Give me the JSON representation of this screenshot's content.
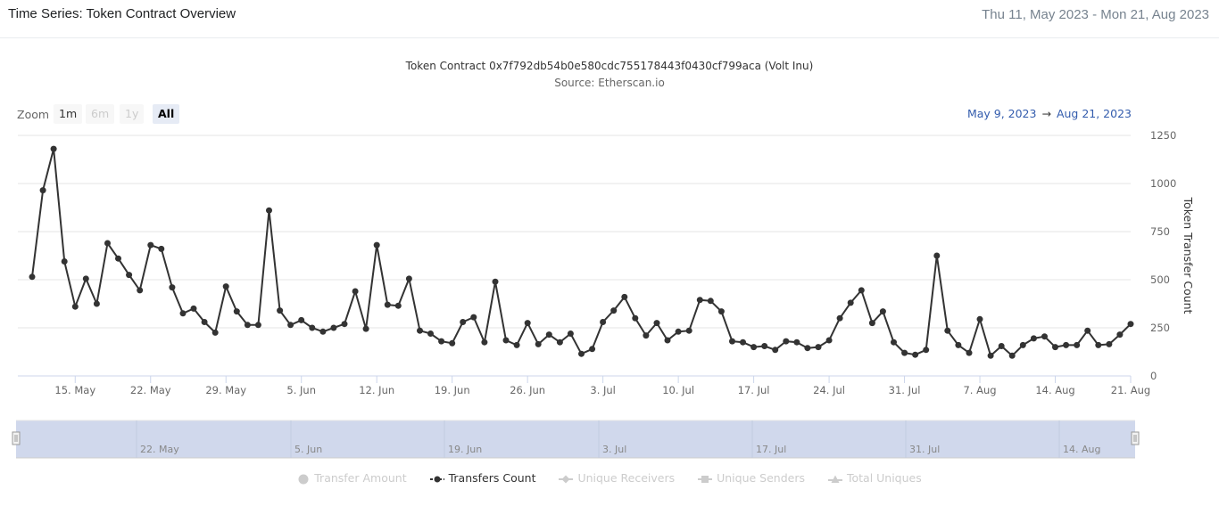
{
  "header": {
    "title": "Time Series: Token Contract Overview",
    "date_range": "Thu 11, May 2023 - Mon 21, Aug 2023"
  },
  "chart_header": {
    "title": "Token Contract 0x7f792db54b0e580cdc755178443f0430cf799aca (Volt Inu)",
    "subtitle": "Source: Etherscan.io"
  },
  "range_selector": {
    "zoom_label": "Zoom",
    "buttons": [
      {
        "label": "1m",
        "state": "normal"
      },
      {
        "label": "6m",
        "state": "disabled"
      },
      {
        "label": "1y",
        "state": "disabled"
      },
      {
        "label": "All",
        "state": "active"
      }
    ],
    "from": "May 9, 2023",
    "arrow": "→",
    "to": "Aug 21, 2023"
  },
  "navigator": {
    "labels": [
      "22. May",
      "5. Jun",
      "19. Jun",
      "3. Jul",
      "17. Jul",
      "31. Jul",
      "14. Aug"
    ]
  },
  "legend": [
    {
      "label": "Transfer Amount",
      "symbol": "circle",
      "visible": false
    },
    {
      "label": "Transfers Count",
      "symbol": "line-circle",
      "visible": true
    },
    {
      "label": "Unique Receivers",
      "symbol": "line-diamond",
      "visible": false
    },
    {
      "label": "Unique Senders",
      "symbol": "line-square",
      "visible": false
    },
    {
      "label": "Total Uniques",
      "symbol": "line-triangle",
      "visible": false
    }
  ],
  "colors": {
    "series": "#333333",
    "grid": "#e6e6e6",
    "navigator_fill": "#d0d8ec",
    "range_text": "#335cad"
  },
  "chart_data": {
    "type": "line",
    "title": "Token Contract 0x7f792db54b0e580cdc755178443f0430cf799aca (Volt Inu)",
    "subtitle": "Source: Etherscan.io",
    "xlabel": "",
    "ylabel": "Token Transfer Count",
    "ylim": [
      0,
      1250
    ],
    "yticks": [
      0,
      250,
      500,
      750,
      1000,
      1250
    ],
    "xticks": [
      "15. May",
      "22. May",
      "29. May",
      "5. Jun",
      "12. Jun",
      "19. Jun",
      "26. Jun",
      "3. Jul",
      "10. Jul",
      "17. Jul",
      "24. Jul",
      "31. Jul",
      "7. Aug",
      "14. Aug",
      "21. Aug"
    ],
    "grid": true,
    "legend_position": "bottom",
    "x_start": "2023-05-11",
    "x_end": "2023-08-21",
    "series": [
      {
        "name": "Transfers Count",
        "values": [
          515,
          965,
          1180,
          595,
          360,
          505,
          375,
          690,
          610,
          525,
          445,
          680,
          660,
          460,
          325,
          350,
          280,
          225,
          465,
          335,
          265,
          265,
          860,
          340,
          265,
          290,
          250,
          230,
          250,
          270,
          440,
          245,
          680,
          370,
          365,
          505,
          235,
          220,
          180,
          170,
          280,
          305,
          175,
          490,
          185,
          160,
          275,
          165,
          215,
          175,
          220,
          115,
          140,
          280,
          340,
          410,
          300,
          210,
          275,
          185,
          230,
          235,
          395,
          390,
          335,
          180,
          175,
          150,
          155,
          135,
          180,
          175,
          145,
          150,
          185,
          300,
          380,
          445,
          275,
          335,
          175,
          120,
          110,
          135,
          625,
          235,
          160,
          120,
          295,
          105,
          155,
          105,
          160,
          195,
          205,
          150,
          160,
          160,
          235,
          160,
          165,
          215,
          270
        ]
      }
    ]
  }
}
